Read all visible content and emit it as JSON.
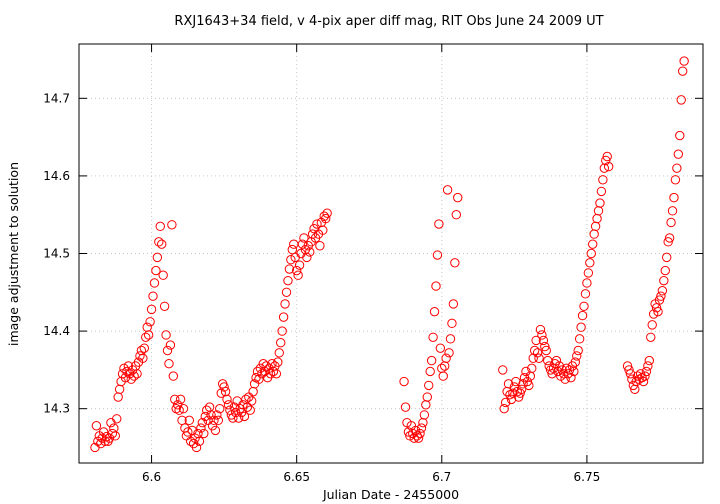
{
  "chart_data": {
    "type": "scatter",
    "title": "RXJ1643+34 field, v 4-pix aper diff mag, RIT Obs June 24 2009 UT",
    "xlabel": "Julian Date - 2455000",
    "ylabel": "image adjustment to solution",
    "xlim": [
      6.575,
      6.79
    ],
    "ylim": [
      14.23,
      14.77
    ],
    "xticks": [
      6.6,
      6.65,
      6.7,
      6.75
    ],
    "xtick_labels": [
      "6.6",
      "6.65",
      "6.7",
      "6.75"
    ],
    "yticks": [
      14.3,
      14.4,
      14.5,
      14.6,
      14.7
    ],
    "ytick_labels": [
      "14.3",
      "14.4",
      "14.5",
      "14.6",
      "14.7"
    ],
    "grid": true,
    "marker": "open-circle",
    "color": "#ff0000",
    "points": [
      [
        6.5805,
        14.25
      ],
      [
        6.581,
        14.278
      ],
      [
        6.5815,
        14.258
      ],
      [
        6.582,
        14.265
      ],
      [
        6.5825,
        14.255
      ],
      [
        6.583,
        14.262
      ],
      [
        6.5835,
        14.27
      ],
      [
        6.584,
        14.258
      ],
      [
        6.5845,
        14.264
      ],
      [
        6.585,
        14.258
      ],
      [
        6.5855,
        14.262
      ],
      [
        6.586,
        14.282
      ],
      [
        6.5865,
        14.268
      ],
      [
        6.587,
        14.275
      ],
      [
        6.5875,
        14.265
      ],
      [
        6.588,
        14.287
      ],
      [
        6.5885,
        14.315
      ],
      [
        6.589,
        14.325
      ],
      [
        6.5895,
        14.335
      ],
      [
        6.59,
        14.345
      ],
      [
        6.5905,
        14.352
      ],
      [
        6.591,
        14.34
      ],
      [
        6.5915,
        14.348
      ],
      [
        6.592,
        14.355
      ],
      [
        6.5925,
        14.345
      ],
      [
        6.593,
        14.338
      ],
      [
        6.5935,
        14.35
      ],
      [
        6.594,
        14.342
      ],
      [
        6.5945,
        14.355
      ],
      [
        6.595,
        14.345
      ],
      [
        6.5955,
        14.36
      ],
      [
        6.596,
        14.368
      ],
      [
        6.5965,
        14.375
      ],
      [
        6.597,
        14.365
      ],
      [
        6.5975,
        14.378
      ],
      [
        6.598,
        14.392
      ],
      [
        6.5985,
        14.405
      ],
      [
        6.599,
        14.395
      ],
      [
        6.5995,
        14.412
      ],
      [
        6.6,
        14.428
      ],
      [
        6.6005,
        14.445
      ],
      [
        6.601,
        14.462
      ],
      [
        6.6015,
        14.478
      ],
      [
        6.602,
        14.495
      ],
      [
        6.6025,
        14.515
      ],
      [
        6.603,
        14.535
      ],
      [
        6.6035,
        14.512
      ],
      [
        6.604,
        14.472
      ],
      [
        6.6045,
        14.432
      ],
      [
        6.605,
        14.395
      ],
      [
        6.6055,
        14.375
      ],
      [
        6.606,
        14.358
      ],
      [
        6.6065,
        14.382
      ],
      [
        6.607,
        14.537
      ],
      [
        6.6075,
        14.342
      ],
      [
        6.608,
        14.312
      ],
      [
        6.6085,
        14.3
      ],
      [
        6.609,
        14.305
      ],
      [
        6.6095,
        14.298
      ],
      [
        6.61,
        14.312
      ],
      [
        6.6105,
        14.285
      ],
      [
        6.611,
        14.3
      ],
      [
        6.6115,
        14.275
      ],
      [
        6.612,
        14.265
      ],
      [
        6.6125,
        14.27
      ],
      [
        6.613,
        14.285
      ],
      [
        6.6135,
        14.258
      ],
      [
        6.614,
        14.272
      ],
      [
        6.6145,
        14.255
      ],
      [
        6.615,
        14.262
      ],
      [
        6.6155,
        14.25
      ],
      [
        6.616,
        14.268
      ],
      [
        6.6165,
        14.258
      ],
      [
        6.617,
        14.275
      ],
      [
        6.6175,
        14.282
      ],
      [
        6.618,
        14.268
      ],
      [
        6.6185,
        14.29
      ],
      [
        6.619,
        14.298
      ],
      [
        6.6195,
        14.285
      ],
      [
        6.62,
        14.302
      ],
      [
        6.6205,
        14.292
      ],
      [
        6.621,
        14.278
      ],
      [
        6.6215,
        14.285
      ],
      [
        6.622,
        14.272
      ],
      [
        6.6225,
        14.292
      ],
      [
        6.623,
        14.285
      ],
      [
        6.6235,
        14.3
      ],
      [
        6.624,
        14.32
      ],
      [
        6.6245,
        14.332
      ],
      [
        6.625,
        14.328
      ],
      [
        6.6255,
        14.322
      ],
      [
        6.626,
        14.312
      ],
      [
        6.6265,
        14.305
      ],
      [
        6.627,
        14.298
      ],
      [
        6.6275,
        14.292
      ],
      [
        6.628,
        14.288
      ],
      [
        6.6285,
        14.302
      ],
      [
        6.629,
        14.295
      ],
      [
        6.6295,
        14.31
      ],
      [
        6.63,
        14.288
      ],
      [
        6.6305,
        14.3
      ],
      [
        6.631,
        14.295
      ],
      [
        6.6315,
        14.305
      ],
      [
        6.632,
        14.29
      ],
      [
        6.6325,
        14.312
      ],
      [
        6.633,
        14.302
      ],
      [
        6.6335,
        14.315
      ],
      [
        6.634,
        14.298
      ],
      [
        6.6345,
        14.31
      ],
      [
        6.635,
        14.322
      ],
      [
        6.6355,
        14.332
      ],
      [
        6.636,
        14.34
      ],
      [
        6.6365,
        14.348
      ],
      [
        6.637,
        14.338
      ],
      [
        6.6375,
        14.352
      ],
      [
        6.638,
        14.345
      ],
      [
        6.6385,
        14.358
      ],
      [
        6.639,
        14.348
      ],
      [
        6.6395,
        14.355
      ],
      [
        6.64,
        14.34
      ],
      [
        6.6405,
        14.352
      ],
      [
        6.641,
        14.345
      ],
      [
        6.6415,
        14.358
      ],
      [
        6.642,
        14.348
      ],
      [
        6.6425,
        14.355
      ],
      [
        6.643,
        14.345
      ],
      [
        6.6435,
        14.36
      ],
      [
        6.644,
        14.372
      ],
      [
        6.6445,
        14.385
      ],
      [
        6.645,
        14.4
      ],
      [
        6.6455,
        14.418
      ],
      [
        6.646,
        14.435
      ],
      [
        6.6465,
        14.45
      ],
      [
        6.647,
        14.465
      ],
      [
        6.6475,
        14.48
      ],
      [
        6.648,
        14.492
      ],
      [
        6.6485,
        14.505
      ],
      [
        6.649,
        14.512
      ],
      [
        6.6495,
        14.495
      ],
      [
        6.65,
        14.478
      ],
      [
        6.6505,
        14.472
      ],
      [
        6.651,
        14.485
      ],
      [
        6.6515,
        14.5
      ],
      [
        6.652,
        14.512
      ],
      [
        6.6525,
        14.52
      ],
      [
        6.653,
        14.505
      ],
      [
        6.6535,
        14.495
      ],
      [
        6.654,
        14.51
      ],
      [
        6.6545,
        14.502
      ],
      [
        6.655,
        14.515
      ],
      [
        6.6555,
        14.525
      ],
      [
        6.656,
        14.532
      ],
      [
        6.6565,
        14.52
      ],
      [
        6.657,
        14.538
      ],
      [
        6.6575,
        14.525
      ],
      [
        6.658,
        14.51
      ],
      [
        6.6585,
        14.54
      ],
      [
        6.659,
        14.53
      ],
      [
        6.6595,
        14.548
      ],
      [
        6.66,
        14.545
      ],
      [
        6.6605,
        14.552
      ],
      [
        6.687,
        14.335
      ],
      [
        6.6875,
        14.302
      ],
      [
        6.688,
        14.282
      ],
      [
        6.6885,
        14.27
      ],
      [
        6.689,
        14.265
      ],
      [
        6.6895,
        14.278
      ],
      [
        6.69,
        14.268
      ],
      [
        6.6905,
        14.262
      ],
      [
        6.691,
        14.272
      ],
      [
        6.6915,
        14.265
      ],
      [
        6.692,
        14.262
      ],
      [
        6.6925,
        14.268
      ],
      [
        6.693,
        14.275
      ],
      [
        6.6935,
        14.282
      ],
      [
        6.694,
        14.292
      ],
      [
        6.6945,
        14.305
      ],
      [
        6.695,
        14.315
      ],
      [
        6.6955,
        14.33
      ],
      [
        6.696,
        14.348
      ],
      [
        6.6965,
        14.362
      ],
      [
        6.697,
        14.392
      ],
      [
        6.6975,
        14.425
      ],
      [
        6.698,
        14.458
      ],
      [
        6.6985,
        14.498
      ],
      [
        6.699,
        14.538
      ],
      [
        6.6995,
        14.378
      ],
      [
        6.7,
        14.352
      ],
      [
        6.7005,
        14.342
      ],
      [
        6.701,
        14.355
      ],
      [
        6.7015,
        14.365
      ],
      [
        6.702,
        14.582
      ],
      [
        6.7025,
        14.372
      ],
      [
        6.703,
        14.39
      ],
      [
        6.7035,
        14.41
      ],
      [
        6.704,
        14.435
      ],
      [
        6.7045,
        14.488
      ],
      [
        6.705,
        14.55
      ],
      [
        6.7055,
        14.572
      ],
      [
        6.721,
        14.35
      ],
      [
        6.7215,
        14.3
      ],
      [
        6.722,
        14.308
      ],
      [
        6.7225,
        14.322
      ],
      [
        6.723,
        14.332
      ],
      [
        6.7235,
        14.318
      ],
      [
        6.724,
        14.312
      ],
      [
        6.7245,
        14.32
      ],
      [
        6.725,
        14.328
      ],
      [
        6.7255,
        14.335
      ],
      [
        6.726,
        14.322
      ],
      [
        6.7265,
        14.315
      ],
      [
        6.727,
        14.32
      ],
      [
        6.7275,
        14.325
      ],
      [
        6.728,
        14.332
      ],
      [
        6.7285,
        14.34
      ],
      [
        6.729,
        14.348
      ],
      [
        6.7295,
        14.335
      ],
      [
        6.73,
        14.33
      ],
      [
        6.7305,
        14.342
      ],
      [
        6.731,
        14.352
      ],
      [
        6.7315,
        14.365
      ],
      [
        6.732,
        14.375
      ],
      [
        6.7325,
        14.388
      ],
      [
        6.733,
        14.372
      ],
      [
        6.7335,
        14.365
      ],
      [
        6.734,
        14.402
      ],
      [
        6.7345,
        14.395
      ],
      [
        6.735,
        14.388
      ],
      [
        6.7355,
        14.38
      ],
      [
        6.736,
        14.375
      ],
      [
        6.7365,
        14.362
      ],
      [
        6.737,
        14.355
      ],
      [
        6.7375,
        14.35
      ],
      [
        6.738,
        14.345
      ],
      [
        6.7385,
        14.352
      ],
      [
        6.739,
        14.358
      ],
      [
        6.7395,
        14.362
      ],
      [
        6.74,
        14.348
      ],
      [
        6.7405,
        14.355
      ],
      [
        6.741,
        14.342
      ],
      [
        6.7415,
        14.35
      ],
      [
        6.742,
        14.345
      ],
      [
        6.7425,
        14.338
      ],
      [
        6.743,
        14.352
      ],
      [
        6.7435,
        14.345
      ],
      [
        6.744,
        14.35
      ],
      [
        6.7445,
        14.34
      ],
      [
        6.745,
        14.355
      ],
      [
        6.7455,
        14.348
      ],
      [
        6.746,
        14.36
      ],
      [
        6.7465,
        14.368
      ],
      [
        6.747,
        14.375
      ],
      [
        6.7475,
        14.39
      ],
      [
        6.748,
        14.405
      ],
      [
        6.7485,
        14.42
      ],
      [
        6.749,
        14.432
      ],
      [
        6.7495,
        14.448
      ],
      [
        6.75,
        14.462
      ],
      [
        6.7505,
        14.475
      ],
      [
        6.751,
        14.488
      ],
      [
        6.7515,
        14.5
      ],
      [
        6.752,
        14.512
      ],
      [
        6.7525,
        14.525
      ],
      [
        6.753,
        14.535
      ],
      [
        6.7535,
        14.545
      ],
      [
        6.754,
        14.555
      ],
      [
        6.7545,
        14.565
      ],
      [
        6.755,
        14.58
      ],
      [
        6.7555,
        14.595
      ],
      [
        6.756,
        14.61
      ],
      [
        6.7565,
        14.62
      ],
      [
        6.757,
        14.625
      ],
      [
        6.7575,
        14.612
      ],
      [
        6.764,
        14.355
      ],
      [
        6.7645,
        14.35
      ],
      [
        6.765,
        14.345
      ],
      [
        6.7655,
        14.338
      ],
      [
        6.766,
        14.33
      ],
      [
        6.7665,
        14.325
      ],
      [
        6.767,
        14.335
      ],
      [
        6.7675,
        14.342
      ],
      [
        6.768,
        14.338
      ],
      [
        6.7685,
        14.345
      ],
      [
        6.769,
        14.34
      ],
      [
        6.7695,
        14.335
      ],
      [
        6.77,
        14.342
      ],
      [
        6.7705,
        14.348
      ],
      [
        6.771,
        14.355
      ],
      [
        6.7715,
        14.362
      ],
      [
        6.772,
        14.392
      ],
      [
        6.7725,
        14.408
      ],
      [
        6.773,
        14.422
      ],
      [
        6.7735,
        14.435
      ],
      [
        6.774,
        14.43
      ],
      [
        6.7745,
        14.425
      ],
      [
        6.775,
        14.44
      ],
      [
        6.7755,
        14.445
      ],
      [
        6.776,
        14.452
      ],
      [
        6.7765,
        14.465
      ],
      [
        6.777,
        14.478
      ],
      [
        6.7775,
        14.495
      ],
      [
        6.778,
        14.515
      ],
      [
        6.7785,
        14.52
      ],
      [
        6.779,
        14.54
      ],
      [
        6.7795,
        14.555
      ],
      [
        6.78,
        14.572
      ],
      [
        6.7805,
        14.595
      ],
      [
        6.781,
        14.61
      ],
      [
        6.7815,
        14.628
      ],
      [
        6.782,
        14.652
      ],
      [
        6.7825,
        14.698
      ],
      [
        6.783,
        14.735
      ],
      [
        6.7835,
        14.748
      ]
    ]
  }
}
